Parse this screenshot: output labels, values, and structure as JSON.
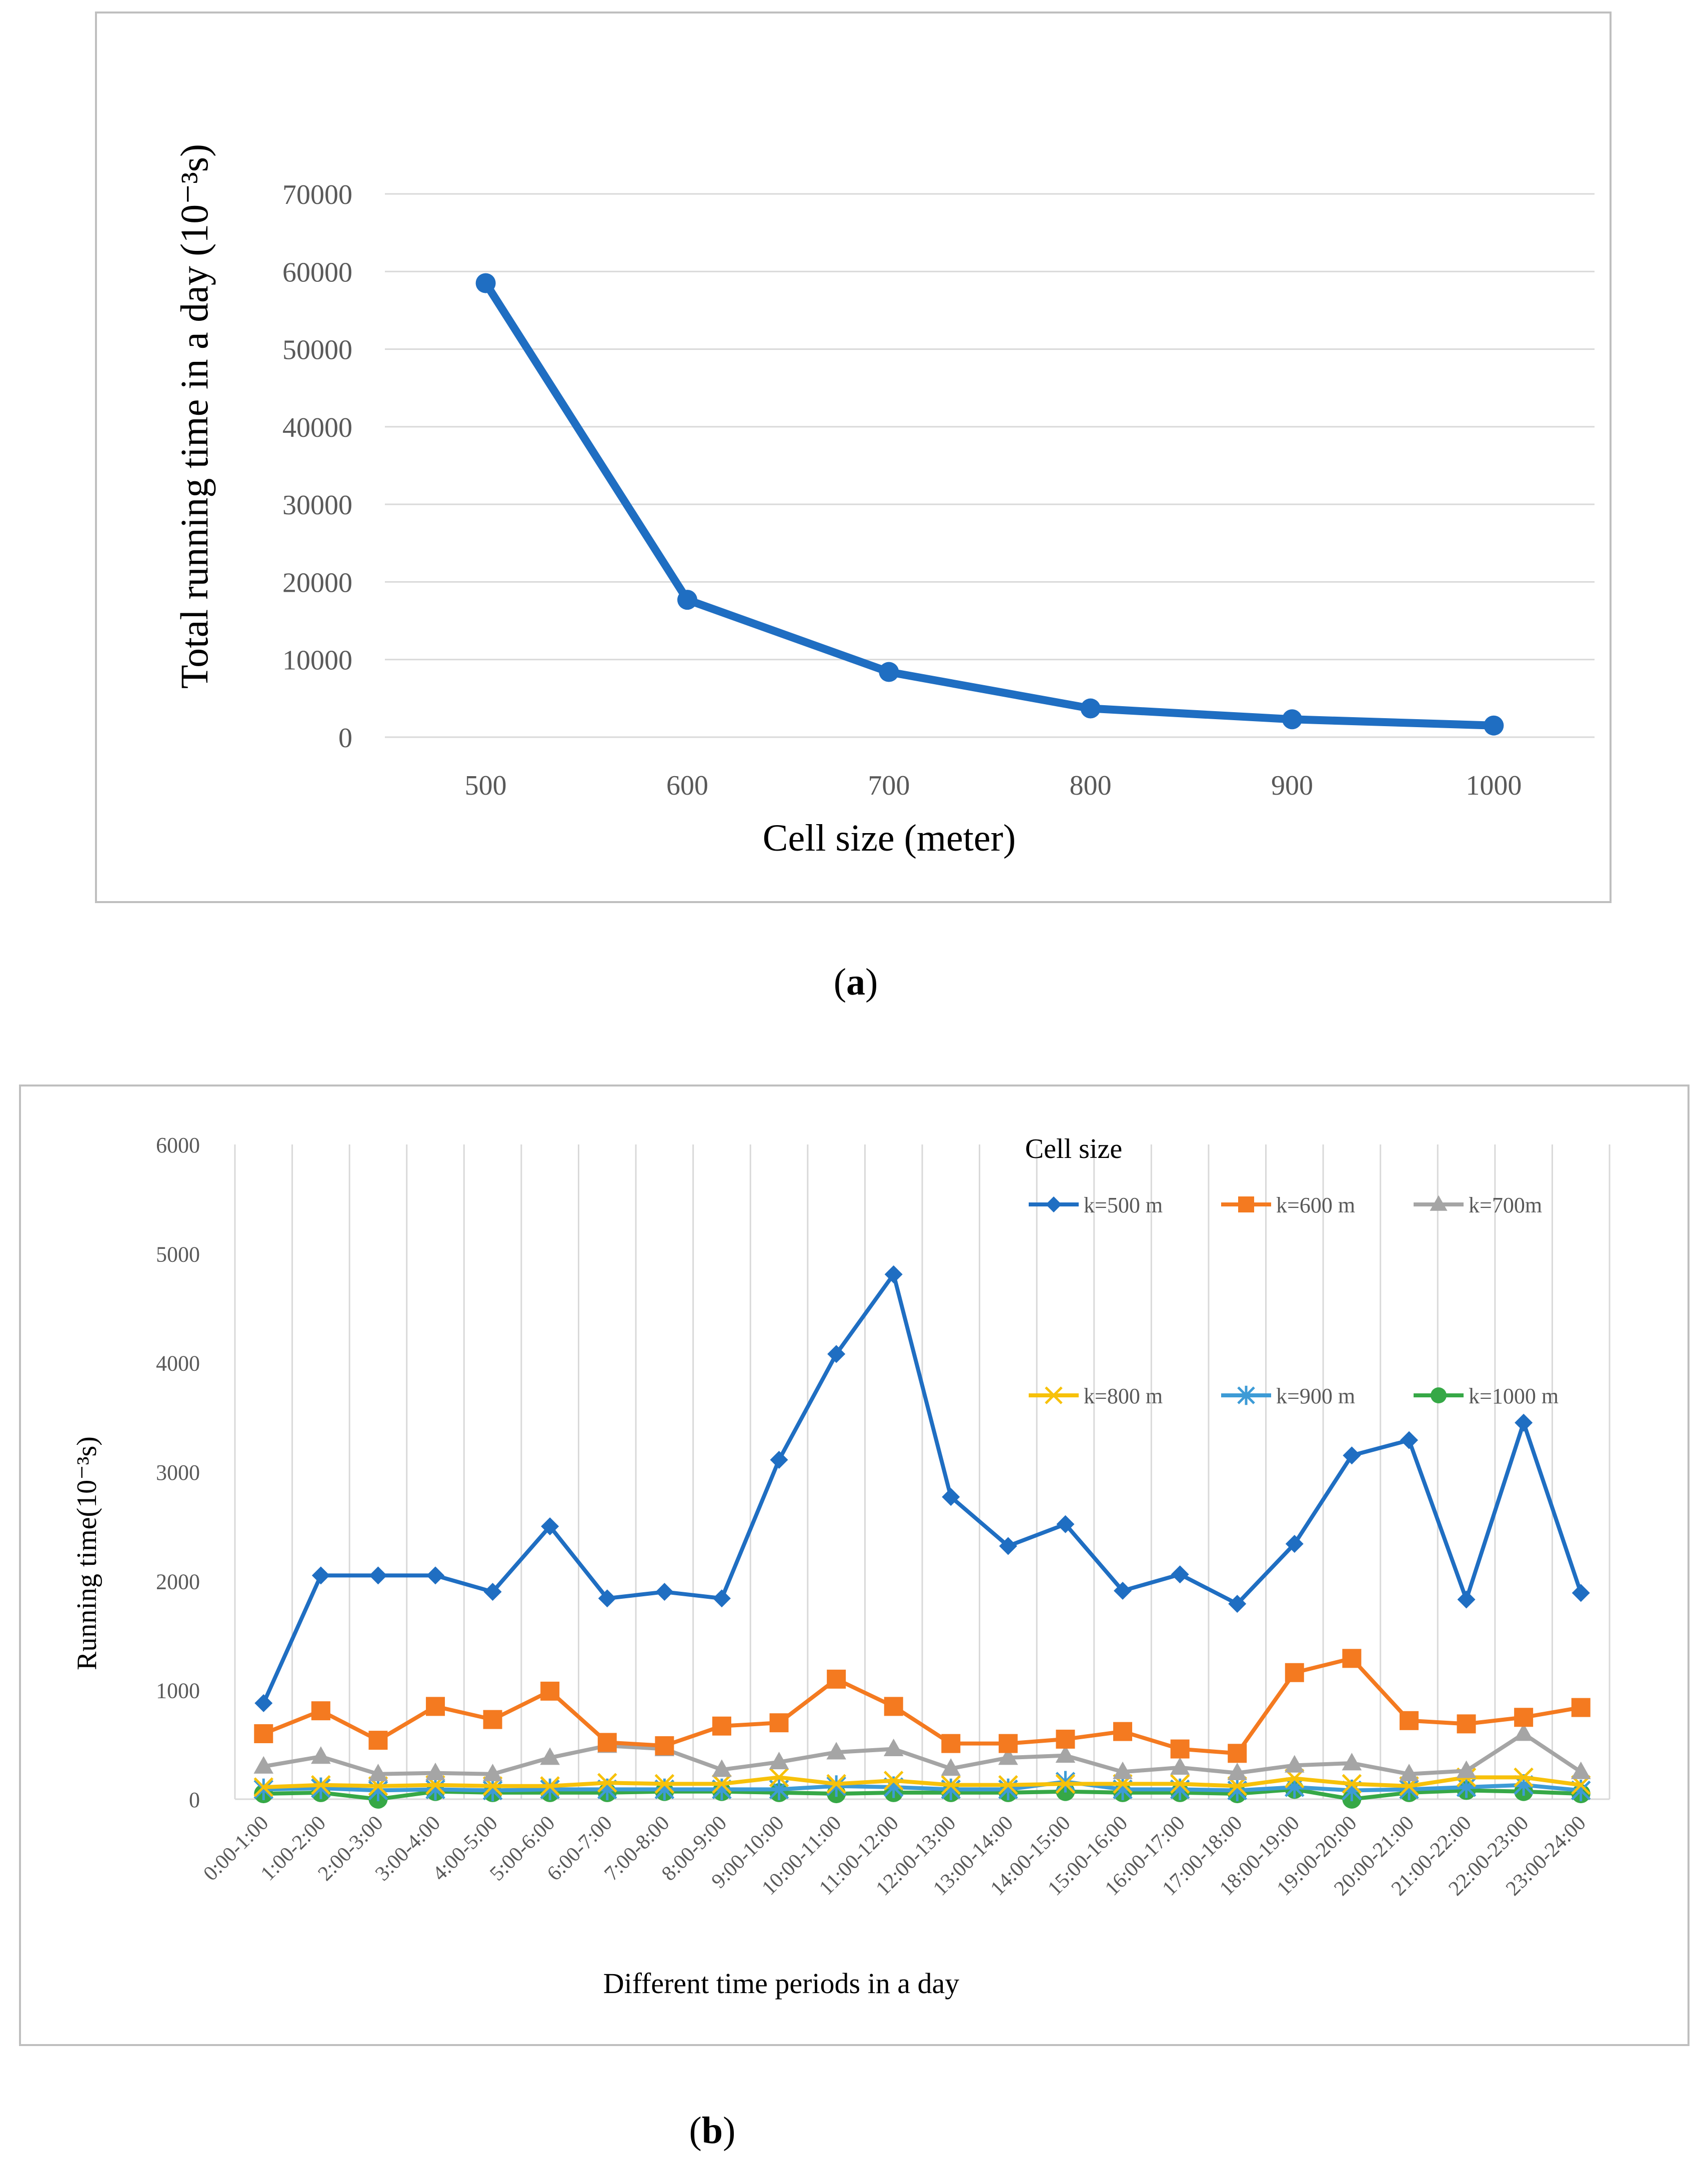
{
  "colors": {
    "blue": "#1F6EC2",
    "orange": "#F47A20",
    "gray": "#A5A5A5",
    "yellow": "#F7C10A",
    "lightblue": "#3D9BD6",
    "green": "#36A846",
    "grid": "#D9D9D9",
    "frame": "#BFBFBF"
  },
  "chart_data": [
    {
      "type": "line",
      "panel": "a",
      "caption_letter": "a",
      "title": "",
      "xlabel": "Cell size (meter)",
      "ylabel": "Total running time in  a day (10⁻³s)",
      "categories": [
        "500",
        "600",
        "700",
        "800",
        "900",
        "1000"
      ],
      "yticks": [
        "0",
        "10000",
        "20000",
        "30000",
        "40000",
        "50000",
        "60000",
        "70000"
      ],
      "ylim": [
        0,
        70000
      ],
      "grid": true,
      "series": [
        {
          "name": "Total running time",
          "color_key": "blue",
          "marker": "circle",
          "values": [
            58500,
            17700,
            8400,
            3700,
            2300,
            1500
          ]
        }
      ]
    },
    {
      "type": "line",
      "panel": "b",
      "caption_letter": "b",
      "title": "",
      "xlabel": "Different time periods in a day",
      "ylabel": "Running time(10⁻³s)",
      "legend_title": "Cell size",
      "legend_position": "top-right",
      "categories": [
        "0:00-1:00",
        "1:00-2:00",
        "2:00-3:00",
        "3:00-4:00",
        "4:00-5:00",
        "5:00-6:00",
        "6:00-7:00",
        "7:00-8:00",
        "8:00-9:00",
        "9:00-10:00",
        "10:00-11:00",
        "11:00-12:00",
        "12:00-13:00",
        "13:00-14:00",
        "14:00-15:00",
        "15:00-16:00",
        "16:00-17:00",
        "17:00-18:00",
        "18:00-19:00",
        "19:00-20:00",
        "20:00-21:00",
        "21:00-22:00",
        "22:00-23:00",
        "23:00-24:00"
      ],
      "yticks": [
        "0",
        "1000",
        "2000",
        "3000",
        "4000",
        "5000",
        "6000"
      ],
      "ylim": [
        0,
        6000
      ],
      "grid": true,
      "series": [
        {
          "name": "k=500 m",
          "color_key": "blue",
          "marker": "diamond",
          "values": [
            880,
            2050,
            2050,
            2050,
            1900,
            2500,
            1840,
            1900,
            1840,
            3110,
            4080,
            4810,
            2770,
            2320,
            2520,
            1910,
            2060,
            1790,
            2340,
            3150,
            3290,
            1830,
            3450,
            1890
          ]
        },
        {
          "name": "k=600 m",
          "color_key": "orange",
          "marker": "square",
          "values": [
            600,
            810,
            540,
            850,
            730,
            990,
            520,
            490,
            670,
            700,
            1100,
            850,
            510,
            510,
            550,
            620,
            460,
            420,
            1160,
            1290,
            720,
            690,
            750,
            840
          ]
        },
        {
          "name": "k=700m",
          "color_key": "gray",
          "marker": "triangle",
          "values": [
            300,
            390,
            230,
            240,
            230,
            380,
            490,
            460,
            270,
            340,
            430,
            460,
            280,
            380,
            400,
            250,
            290,
            240,
            310,
            330,
            230,
            260,
            600,
            250
          ]
        },
        {
          "name": "k=800 m",
          "color_key": "yellow",
          "marker": "x",
          "values": [
            110,
            130,
            120,
            130,
            120,
            120,
            150,
            140,
            140,
            200,
            140,
            170,
            130,
            130,
            140,
            140,
            140,
            120,
            190,
            140,
            120,
            200,
            200,
            130
          ]
        },
        {
          "name": "k=900 m",
          "color_key": "lightblue",
          "marker": "star",
          "values": [
            90,
            100,
            80,
            90,
            80,
            90,
            90,
            90,
            90,
            90,
            120,
            110,
            90,
            90,
            160,
            90,
            90,
            80,
            110,
            80,
            90,
            110,
            130,
            80
          ]
        },
        {
          "name": "k=1000 m",
          "color_key": "green",
          "marker": "circle",
          "values": [
            50,
            60,
            0,
            70,
            60,
            60,
            60,
            70,
            70,
            60,
            50,
            60,
            60,
            60,
            70,
            60,
            60,
            50,
            90,
            0,
            60,
            80,
            70,
            50
          ]
        }
      ]
    }
  ]
}
